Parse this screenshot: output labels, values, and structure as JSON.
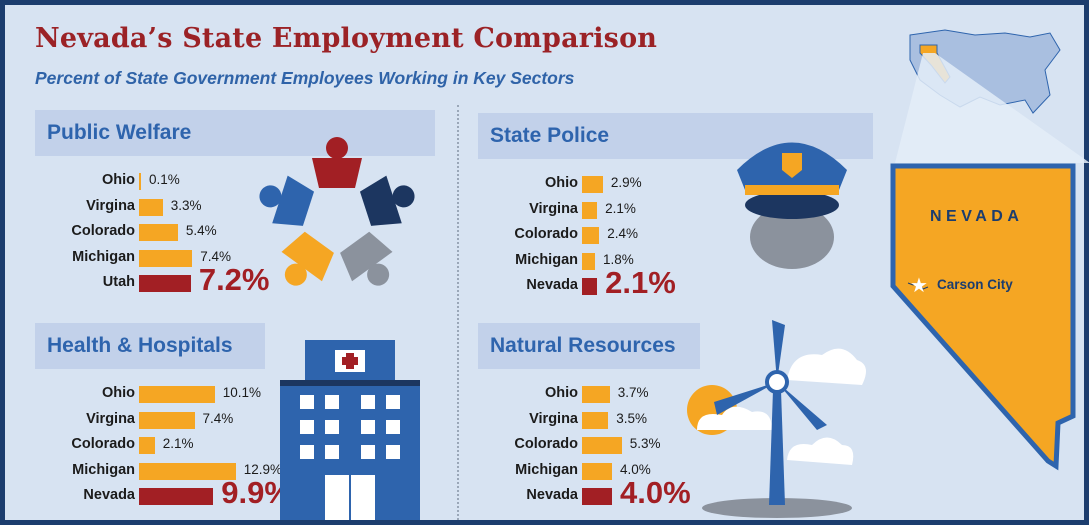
{
  "title": "Nevada’s State Employment Comparison",
  "subtitle": "Percent of State Government Employees Working in Key Sectors",
  "map": {
    "state_name": "NEVADA",
    "capital": "Carson City"
  },
  "colors": {
    "bar": "#f5a623",
    "highlight": "#a21f24",
    "header_text": "#2e64ad",
    "title": "#9b2226"
  },
  "chart_data": [
    {
      "type": "bar",
      "orientation": "horizontal",
      "title": "Public Welfare",
      "categories": [
        "Ohio",
        "Virgina",
        "Colorado",
        "Michigan",
        "Utah"
      ],
      "values": [
        0.1,
        3.3,
        5.4,
        7.4,
        7.2
      ],
      "labels": [
        "0.1%",
        "3.3%",
        "5.4%",
        "7.4%",
        "7.2%"
      ],
      "highlight": "Utah"
    },
    {
      "type": "bar",
      "orientation": "horizontal",
      "title": "State Police",
      "categories": [
        "Ohio",
        "Virgina",
        "Colorado",
        "Michigan",
        "Nevada"
      ],
      "values": [
        2.9,
        2.1,
        2.4,
        1.8,
        2.1
      ],
      "labels": [
        "2.9%",
        "2.1%",
        "2.4%",
        "1.8%",
        "2.1%"
      ],
      "highlight": "Nevada"
    },
    {
      "type": "bar",
      "orientation": "horizontal",
      "title": "Health & Hospitals",
      "categories": [
        "Ohio",
        "Virgina",
        "Colorado",
        "Michigan",
        "Nevada"
      ],
      "values": [
        10.1,
        7.4,
        2.1,
        12.9,
        9.9
      ],
      "labels": [
        "10.1%",
        "7.4%",
        "2.1%",
        "12.9%",
        "9.9%"
      ],
      "highlight": "Nevada"
    },
    {
      "type": "bar",
      "orientation": "horizontal",
      "title": "Natural Resources",
      "categories": [
        "Ohio",
        "Virgina",
        "Colorado",
        "Michigan",
        "Nevada"
      ],
      "values": [
        3.7,
        3.5,
        5.3,
        4.0,
        4.0
      ],
      "labels": [
        "3.7%",
        "3.5%",
        "5.3%",
        "4.0%",
        "4.0%"
      ],
      "highlight": "Nevada"
    }
  ]
}
